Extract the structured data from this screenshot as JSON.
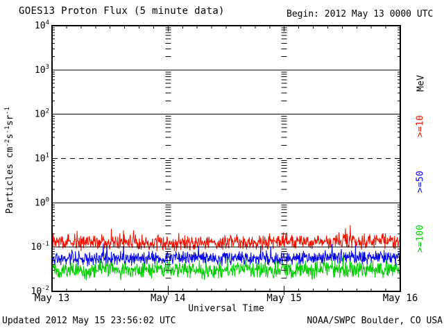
{
  "header": {
    "title": "GOES13 Proton Flux (5 minute data)",
    "begin": "Begin: 2012 May 13 0000 UTC"
  },
  "footer": {
    "updated": "Updated 2012 May 15 23:56:02 UTC",
    "source": "NOAA/SWPC Boulder, CO USA"
  },
  "axes": {
    "x_title": "Universal Time",
    "y_label_parts": {
      "p1": "Particles cm",
      "e1": "-2",
      "p2": "s",
      "e2": "-1",
      "p3": "sr",
      "e3": "-1"
    }
  },
  "legend": {
    "unit": "MeV",
    "entries": [
      {
        "label": ">=10",
        "color": "#ee1100"
      },
      {
        "label": ">=50",
        "color": "#0000ee"
      },
      {
        "label": ">=100",
        "color": "#00cc00"
      }
    ]
  },
  "chart_data": {
    "type": "line",
    "title": "GOES13 Proton Flux (5 minute data)",
    "xlabel": "Universal Time",
    "ylabel": "Particles cm-2 s-1 sr-1",
    "y_scale": "log",
    "ylim": [
      0.01,
      10000
    ],
    "y_tick_exponents": [
      4,
      3,
      2,
      1,
      0,
      -1,
      -2
    ],
    "x_ticks": [
      "May 13",
      "May 14",
      "May 15",
      "May 16"
    ],
    "x_range_hours": 72,
    "x_minor_tick_hours": 3,
    "cadence_minutes": 5,
    "solid_gridlines": [
      1000,
      100,
      1,
      0.1
    ],
    "dashed_gridlines": [
      10
    ],
    "day_boundary_tick_columns_at_hours": [
      24,
      48
    ],
    "grid": true,
    "legend_position": "right-rotated",
    "series": [
      {
        "name": "Protons >=10 MeV",
        "legend": ">=10",
        "color": "#ee1100",
        "approx_mean": 0.13,
        "approx_range": [
          0.07,
          0.3
        ],
        "baseline_2h": [
          0.13,
          0.125,
          0.128,
          0.122,
          0.13,
          0.135,
          0.126,
          0.124,
          0.13,
          0.128,
          0.122,
          0.126,
          0.132,
          0.128,
          0.125,
          0.13,
          0.126,
          0.122,
          0.128,
          0.133,
          0.128,
          0.125,
          0.13,
          0.135,
          0.14,
          0.132,
          0.128,
          0.135,
          0.13,
          0.128,
          0.135,
          0.14,
          0.135,
          0.132,
          0.138,
          0.135,
          0.132
        ],
        "noise_log_sigma": 0.2,
        "spike_prob": 0.02,
        "spike_factor": 1.6,
        "clamp": [
          0.072,
          0.33
        ],
        "seed": 7
      },
      {
        "name": "Protons >=50 MeV",
        "legend": ">=50",
        "color": "#0000ee",
        "approx_mean": 0.056,
        "approx_range": [
          0.035,
          0.12
        ],
        "baseline_2h": [
          0.056,
          0.054,
          0.057,
          0.055,
          0.053,
          0.056,
          0.058,
          0.055,
          0.054,
          0.056,
          0.055,
          0.053,
          0.056,
          0.058,
          0.056,
          0.054,
          0.056,
          0.055,
          0.057,
          0.056,
          0.054,
          0.056,
          0.058,
          0.057,
          0.055,
          0.057,
          0.056,
          0.058,
          0.057,
          0.055,
          0.057,
          0.058,
          0.056,
          0.057,
          0.058,
          0.057,
          0.056
        ],
        "noise_log_sigma": 0.19,
        "spike_prob": 0.02,
        "spike_factor": 1.5,
        "clamp": [
          0.034,
          0.125
        ],
        "seed": 19
      },
      {
        "name": "Protons >=100 MeV",
        "legend": ">=100",
        "color": "#00cc00",
        "approx_mean": 0.031,
        "approx_range": [
          0.015,
          0.08
        ],
        "baseline_2h": [
          0.031,
          0.03,
          0.032,
          0.03,
          0.029,
          0.031,
          0.032,
          0.03,
          0.031,
          0.03,
          0.029,
          0.031,
          0.032,
          0.031,
          0.03,
          0.031,
          0.03,
          0.029,
          0.031,
          0.032,
          0.031,
          0.03,
          0.031,
          0.032,
          0.031,
          0.03,
          0.031,
          0.03,
          0.032,
          0.031,
          0.03,
          0.031,
          0.032,
          0.031,
          0.03,
          0.031,
          0.03
        ],
        "noise_log_sigma": 0.23,
        "spike_prob": 0.025,
        "spike_factor": 1.6,
        "clamp": [
          0.014,
          0.082
        ],
        "seed": 33
      }
    ]
  },
  "colors": {
    "background": "#ffffff",
    "frame": "#000000"
  }
}
